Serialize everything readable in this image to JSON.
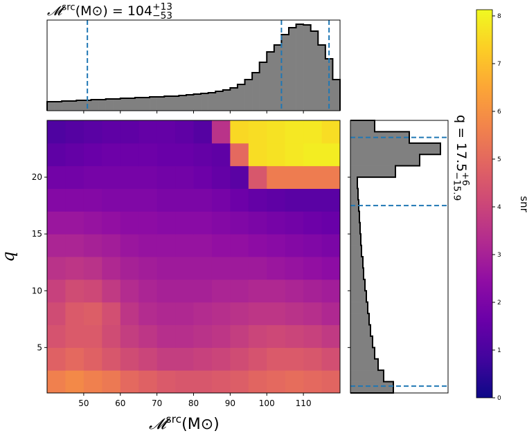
{
  "chart_data": [
    {
      "type": "histogram",
      "orientation": "vertical",
      "title": {
        "base": "𝓜",
        "sup": "src",
        "rest": " (M⊙) = 104",
        "upper": "+13",
        "lower": "−53"
      },
      "bins": [
        40,
        42,
        44,
        46,
        48,
        50,
        52,
        54,
        56,
        58,
        60,
        62,
        64,
        66,
        68,
        70,
        72,
        74,
        76,
        78,
        80,
        82,
        84,
        86,
        88,
        90,
        92,
        94,
        96,
        98,
        100,
        102,
        104,
        106,
        108,
        110,
        112,
        114,
        116,
        118,
        120
      ],
      "values": [
        13,
        13,
        14,
        14,
        15,
        15,
        16,
        16,
        17,
        17,
        18,
        18,
        19,
        19,
        20,
        20,
        21,
        21,
        22,
        23,
        24,
        25,
        26,
        28,
        30,
        33,
        38,
        45,
        55,
        70,
        85,
        95,
        110,
        120,
        125,
        124,
        115,
        95,
        75,
        45
      ],
      "xlim": [
        40,
        120
      ],
      "ylim": [
        0,
        131
      ],
      "color": "#808080",
      "edgecolor": "#000000",
      "lines": [
        51,
        104,
        117
      ],
      "line_color": "#1f77b4"
    },
    {
      "type": "heatmap",
      "xlabel": {
        "base": "𝓜",
        "sup": "src",
        "rest": " (M⊙)"
      },
      "ylabel": "q",
      "xbins": [
        40,
        45,
        50,
        55,
        60,
        65,
        70,
        75,
        80,
        85,
        90,
        95,
        100,
        105,
        110,
        115,
        120
      ],
      "ybins": [
        1,
        3,
        5,
        7,
        9,
        11,
        13,
        15,
        17,
        19,
        21,
        23,
        25
      ],
      "values": [
        [
          5.6,
          5.8,
          5.6,
          5.4,
          5.0,
          4.8,
          4.6,
          4.5,
          4.5,
          4.6,
          4.7,
          4.9,
          5.0,
          5.1,
          5.0,
          4.9
        ],
        [
          4.8,
          5.0,
          4.8,
          4.5,
          4.2,
          4.0,
          3.8,
          3.8,
          3.9,
          4.0,
          4.2,
          4.4,
          4.6,
          4.6,
          4.5,
          4.3
        ],
        [
          4.4,
          4.6,
          4.6,
          4.2,
          3.8,
          3.6,
          3.4,
          3.4,
          3.5,
          3.6,
          3.8,
          4.0,
          4.1,
          4.0,
          3.9,
          3.7
        ],
        [
          4.2,
          4.6,
          4.7,
          4.3,
          3.6,
          3.3,
          3.2,
          3.2,
          3.3,
          3.4,
          3.5,
          3.6,
          3.6,
          3.5,
          3.4,
          3.2
        ],
        [
          3.9,
          4.2,
          4.1,
          3.7,
          3.3,
          3.1,
          3.0,
          3.0,
          3.0,
          3.1,
          3.1,
          3.2,
          3.2,
          3.1,
          3.0,
          2.9
        ],
        [
          3.5,
          3.6,
          3.5,
          3.2,
          3.0,
          2.9,
          2.8,
          2.8,
          2.8,
          2.8,
          2.8,
          2.8,
          2.7,
          2.6,
          2.5,
          2.4
        ],
        [
          3.1,
          3.1,
          3.0,
          2.9,
          2.7,
          2.6,
          2.6,
          2.6,
          2.6,
          2.5,
          2.5,
          2.4,
          2.3,
          2.2,
          2.1,
          2.0
        ],
        [
          2.7,
          2.7,
          2.6,
          2.5,
          2.4,
          2.4,
          2.3,
          2.3,
          2.3,
          2.2,
          2.1,
          2.0,
          1.9,
          1.8,
          1.7,
          1.6
        ],
        [
          2.2,
          2.2,
          2.2,
          2.1,
          2.1,
          2.1,
          2.0,
          2.0,
          2.0,
          1.9,
          1.7,
          1.5,
          1.4,
          1.3,
          1.3,
          1.3
        ],
        [
          1.8,
          1.8,
          1.9,
          1.9,
          1.9,
          1.9,
          1.8,
          1.8,
          1.7,
          1.5,
          1.3,
          4.5,
          5.5,
          5.5,
          5.5,
          5.5
        ],
        [
          1.4,
          1.5,
          1.6,
          1.7,
          1.7,
          1.7,
          1.6,
          1.6,
          1.5,
          1.4,
          5.0,
          7.6,
          7.7,
          7.8,
          7.9,
          7.9
        ],
        [
          1.1,
          1.2,
          1.3,
          1.4,
          1.4,
          1.5,
          1.5,
          1.4,
          1.2,
          3.5,
          7.5,
          7.6,
          7.7,
          7.8,
          7.8,
          7.6
        ]
      ],
      "xlim": [
        40,
        120
      ],
      "ylim": [
        1,
        25
      ],
      "xticks": [
        50,
        60,
        70,
        80,
        90,
        100,
        110
      ],
      "yticks": [
        5,
        10,
        15,
        20
      ],
      "colormap": "plasma",
      "colorbar": {
        "label": "snr",
        "lim": [
          0,
          8.13
        ],
        "ticks": [
          0,
          1,
          2,
          3,
          4,
          5,
          6,
          7,
          8
        ]
      }
    },
    {
      "type": "histogram",
      "orientation": "horizontal",
      "label": {
        "base": "q = 17.5",
        "upper": "+6",
        "lower": "−15.9"
      },
      "bins": [
        1,
        2,
        3,
        4,
        5,
        6,
        7,
        8,
        9,
        10,
        11,
        12,
        13,
        14,
        15,
        16,
        17,
        18,
        19,
        20,
        21,
        22,
        23,
        24,
        25
      ],
      "values": [
        62,
        48,
        40,
        35,
        32,
        29,
        27,
        25,
        23,
        21,
        19,
        18,
        16,
        15,
        14,
        13,
        12,
        11,
        10,
        65,
        100,
        130,
        85,
        35
      ],
      "xlim": [
        0,
        141
      ],
      "ylim": [
        1,
        25
      ],
      "color": "#808080",
      "edgecolor": "#000000",
      "lines": [
        17.5,
        23.5,
        1.6
      ],
      "line_color": "#1f77b4"
    }
  ]
}
